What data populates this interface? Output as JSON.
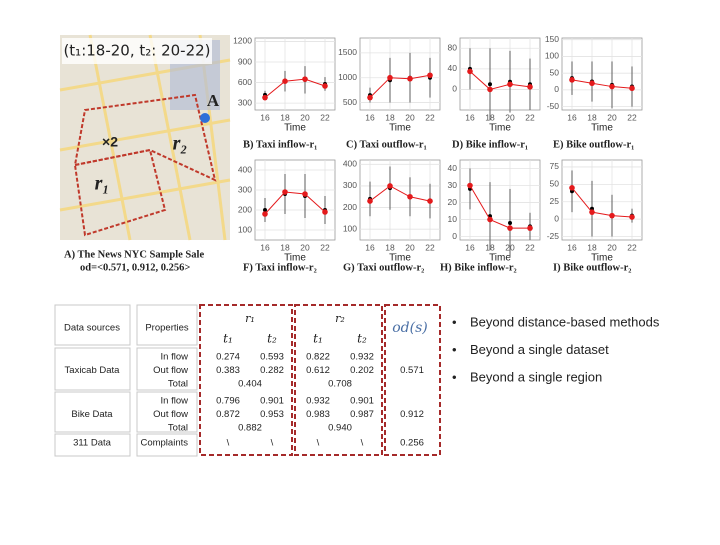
{
  "figure": {
    "map": {
      "time_label": "(t₁:18-20, t₂: 20-22)",
      "marker": "A",
      "region_1": "r₁",
      "region_2": "r₂",
      "factor": "×2",
      "caption": "A)  The News NYC Sample Sale",
      "od": "od=<0.571, 0.912, 0.256>"
    },
    "panels": [
      {
        "caption": "B) Taxi inflow-r₁",
        "xlabel": "Time",
        "xlim": [
          15,
          23
        ],
        "xticks": [
          16,
          18,
          20,
          22
        ],
        "ylim": [
          200,
          1250
        ],
        "yticks": [
          300,
          600,
          900,
          1200
        ],
        "x": [
          16,
          18,
          20,
          22
        ],
        "series": [
          {
            "color": "#000000",
            "values": [
              420,
              620,
              640,
              580
            ],
            "errors": [
              60,
              150,
              200,
              100
            ]
          },
          {
            "color": "#e41a1c",
            "connected": true,
            "values": [
              380,
              620,
              650,
              550
            ]
          }
        ]
      },
      {
        "caption": "C) Taxi outflow-r₁",
        "xlabel": "Time",
        "xlim": [
          15,
          23
        ],
        "xticks": [
          16,
          18,
          20,
          22
        ],
        "ylim": [
          350,
          1800
        ],
        "yticks": [
          500,
          1000,
          1500
        ],
        "x": [
          16,
          18,
          20,
          22
        ],
        "series": [
          {
            "color": "#000000",
            "values": [
              650,
              950,
              1000,
              1000
            ],
            "errors": [
              150,
              450,
              500,
              400
            ]
          },
          {
            "color": "#e41a1c",
            "connected": true,
            "values": [
              600,
              1000,
              980,
              1050
            ]
          }
        ]
      },
      {
        "caption": "D) Bike inflow-r₁",
        "xlabel": "Time",
        "xlim": [
          15,
          23
        ],
        "xticks": [
          16,
          18,
          20,
          22
        ],
        "ylim": [
          -40,
          100
        ],
        "yticks": [
          0,
          40,
          80
        ],
        "x": [
          16,
          18,
          20,
          22
        ],
        "series": [
          {
            "color": "#000000",
            "values": [
              40,
              10,
              15,
              10
            ],
            "errors": [
              40,
              70,
              60,
              50
            ]
          },
          {
            "color": "#e41a1c",
            "connected": true,
            "values": [
              35,
              0,
              10,
              5
            ]
          }
        ]
      },
      {
        "caption": "E) Bike outflow-r₁",
        "xlabel": "Time",
        "xlim": [
          15,
          23
        ],
        "xticks": [
          16,
          18,
          20,
          22
        ],
        "ylim": [
          -60,
          155
        ],
        "yticks": [
          -50,
          0,
          50,
          100,
          150
        ],
        "x": [
          16,
          18,
          20,
          22
        ],
        "series": [
          {
            "color": "#000000",
            "values": [
              35,
              25,
              15,
              10
            ],
            "errors": [
              50,
              60,
              70,
              60
            ]
          },
          {
            "color": "#e41a1c",
            "connected": true,
            "values": [
              30,
              20,
              10,
              5
            ]
          }
        ]
      },
      {
        "caption": "F) Taxi inflow-r₂",
        "xlabel": "Time",
        "xlim": [
          15,
          23
        ],
        "xticks": [
          16,
          18,
          20,
          22
        ],
        "ylim": [
          50,
          450
        ],
        "yticks": [
          100,
          200,
          300,
          400
        ],
        "x": [
          16,
          18,
          20,
          22
        ],
        "series": [
          {
            "color": "#000000",
            "values": [
              200,
              280,
              270,
              200
            ],
            "errors": [
              60,
              100,
              110,
              70
            ]
          },
          {
            "color": "#e41a1c",
            "connected": true,
            "values": [
              180,
              290,
              280,
              190
            ]
          }
        ]
      },
      {
        "caption": "G) Taxi outflow-r₂",
        "xlabel": "Time",
        "xlim": [
          15,
          23
        ],
        "xticks": [
          16,
          18,
          20,
          22
        ],
        "ylim": [
          50,
          420
        ],
        "yticks": [
          100,
          200,
          300,
          400
        ],
        "x": [
          16,
          18,
          20,
          22
        ],
        "series": [
          {
            "color": "#000000",
            "values": [
              240,
              290,
              250,
              230
            ],
            "errors": [
              80,
              100,
              90,
              80
            ]
          },
          {
            "color": "#e41a1c",
            "connected": true,
            "values": [
              230,
              300,
              250,
              230
            ]
          }
        ]
      },
      {
        "caption": "H) Bike inflow-r₂",
        "xlabel": "Time",
        "xlim": [
          15,
          23
        ],
        "xticks": [
          16,
          18,
          20,
          22
        ],
        "ylim": [
          -2,
          45
        ],
        "yticks": [
          0,
          10,
          20,
          30,
          40
        ],
        "x": [
          16,
          18,
          20,
          22
        ],
        "series": [
          {
            "color": "#000000",
            "values": [
              28,
              12,
              8,
              6
            ],
            "errors": [
              12,
              20,
              20,
              8
            ]
          },
          {
            "color": "#e41a1c",
            "connected": true,
            "values": [
              30,
              10,
              5,
              5
            ]
          }
        ]
      },
      {
        "caption": "I) Bike outflow-r₂",
        "xlabel": "Time",
        "xlim": [
          15,
          23
        ],
        "xticks": [
          16,
          18,
          20,
          22
        ],
        "ylim": [
          -30,
          85
        ],
        "yticks": [
          -25,
          0,
          25,
          50,
          75
        ],
        "x": [
          16,
          18,
          20,
          22
        ],
        "series": [
          {
            "color": "#000000",
            "values": [
              40,
              15,
              5,
              5
            ],
            "errors": [
              30,
              40,
              30,
              10
            ]
          },
          {
            "color": "#e41a1c",
            "connected": true,
            "values": [
              45,
              10,
              5,
              3
            ]
          }
        ]
      }
    ]
  },
  "table": {
    "headers": [
      "Data sources",
      "Properties"
    ],
    "regions": [
      {
        "name": "r₁",
        "times": [
          "t₁",
          "t₂"
        ]
      },
      {
        "name": "r₂",
        "times": [
          "t₁",
          "t₂"
        ]
      }
    ],
    "od_header": "od(s)",
    "rows": [
      {
        "source": "Taxicab Data",
        "properties": [
          "In flow",
          "Out flow",
          "Total"
        ],
        "values": [
          [
            [
              "0.274",
              "0.593"
            ],
            [
              "0.822",
              "0.932"
            ]
          ],
          [
            [
              "0.383",
              "0.282"
            ],
            [
              "0.612",
              "0.202"
            ]
          ],
          [
            [
              "0.404"
            ],
            [
              "0.708"
            ]
          ]
        ],
        "od": "0.571"
      },
      {
        "source": "Bike Data",
        "properties": [
          "In flow",
          "Out flow",
          "Total"
        ],
        "values": [
          [
            [
              "0.796",
              "0.901"
            ],
            [
              "0.932",
              "0.901"
            ]
          ],
          [
            [
              "0.872",
              "0.953"
            ],
            [
              "0.983",
              "0.987"
            ]
          ],
          [
            [
              "0.882"
            ],
            [
              "0.940"
            ]
          ]
        ],
        "od": "0.912"
      },
      {
        "source": "311 Data",
        "properties": [
          "Complaints"
        ],
        "values": [
          [
            [
              "\\",
              "\\"
            ],
            [
              "\\",
              "\\"
            ]
          ]
        ],
        "od": "0.256"
      }
    ]
  },
  "bullets": [
    "Beyond distance-based methods",
    "Beyond a single dataset",
    "Beyond a single region"
  ]
}
